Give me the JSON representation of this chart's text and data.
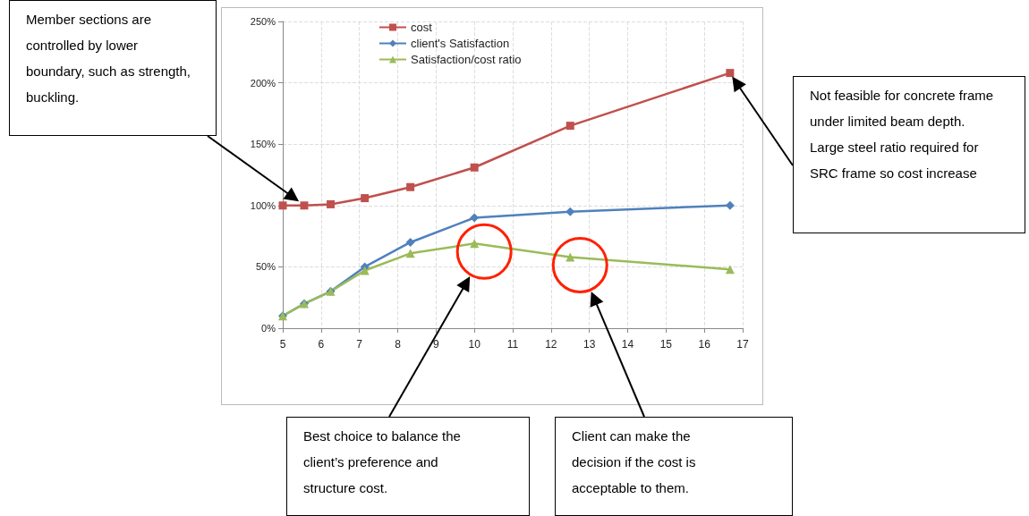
{
  "chart_data": {
    "type": "line",
    "x": [
      5,
      5.56,
      6.25,
      7.14,
      8.33,
      10,
      12.5,
      16.67
    ],
    "series": [
      {
        "name": "cost",
        "color": "#c0504d",
        "marker": "square",
        "values": [
          100,
          100,
          101,
          106,
          115,
          131,
          165,
          208
        ]
      },
      {
        "name": "client's Satisfaction",
        "color": "#4f81bd",
        "marker": "diamond",
        "values": [
          10,
          20,
          30,
          50,
          70,
          90,
          95,
          100
        ]
      },
      {
        "name": "Satisfaction/cost ratio",
        "color": "#9bbb59",
        "marker": "triangle",
        "values": [
          10,
          20,
          30,
          47,
          61,
          69,
          58,
          48
        ]
      }
    ],
    "xlim": [
      5,
      17
    ],
    "xticks": [
      5,
      6,
      7,
      8,
      9,
      10,
      11,
      12,
      13,
      14,
      15,
      16,
      17
    ],
    "ylim": [
      0,
      250
    ],
    "yticks": [
      {
        "value": 0,
        "label": "0%"
      },
      {
        "value": 50,
        "label": "50%"
      },
      {
        "value": 100,
        "label": "100%"
      },
      {
        "value": 150,
        "label": "150%"
      },
      {
        "value": 200,
        "label": "200%"
      },
      {
        "value": 250,
        "label": "250%"
      }
    ],
    "grid": true,
    "legend": "top",
    "line_style": "solid",
    "annotations": [
      "Member sections are controlled by lower boundary, such as strength, buckling.",
      "Not feasible for concrete frame under limited beam depth. Large steel ratio required for SRC frame so cost increase",
      "Best choice to balance the client’s preference and structure cost.",
      "Client can make the decision if the cost is acceptable to them."
    ]
  }
}
